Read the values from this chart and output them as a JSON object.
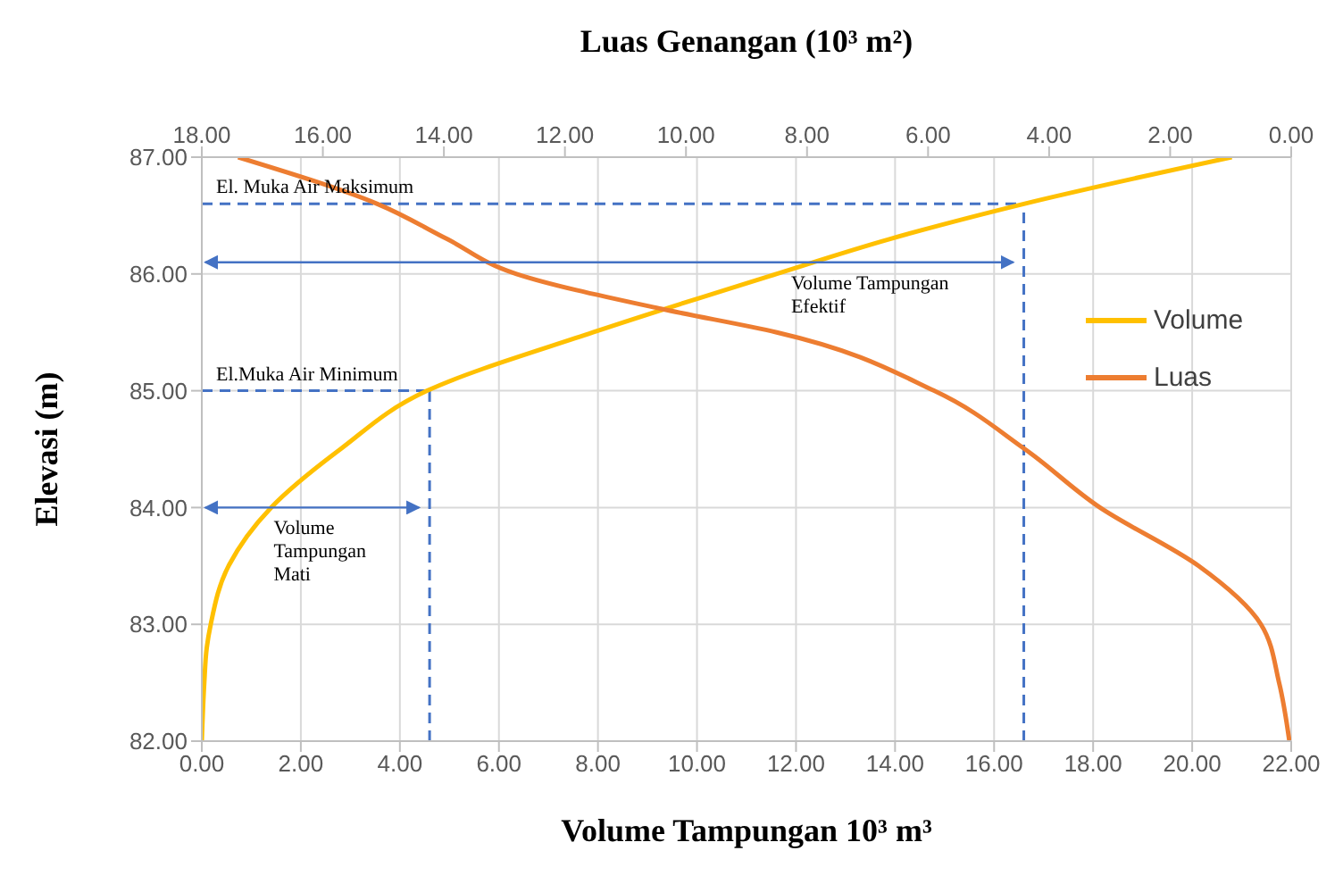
{
  "chart_data": {
    "type": "line",
    "title": "Luas Genangan (10³ m²)",
    "xlabel": "Volume Tampungan 10³ m³",
    "ylabel": "Elevasi (m)",
    "xlim": [
      0,
      22
    ],
    "xticks": [
      {
        "value": 0,
        "label": "0.00"
      },
      {
        "value": 2,
        "label": "2.00"
      },
      {
        "value": 4,
        "label": "4.00"
      },
      {
        "value": 6,
        "label": "6.00"
      },
      {
        "value": 8,
        "label": "8.00"
      },
      {
        "value": 10,
        "label": "10.00"
      },
      {
        "value": 12,
        "label": "12.00"
      },
      {
        "value": 14,
        "label": "14.00"
      },
      {
        "value": 16,
        "label": "16.00"
      },
      {
        "value": 18,
        "label": "18.00"
      },
      {
        "value": 20,
        "label": "20.00"
      },
      {
        "value": 22,
        "label": "22.00"
      }
    ],
    "x2lim": [
      18,
      0
    ],
    "x2ticks": [
      {
        "value": 18,
        "label": "18.00"
      },
      {
        "value": 16,
        "label": "16.00"
      },
      {
        "value": 14,
        "label": "14.00"
      },
      {
        "value": 12,
        "label": "12.00"
      },
      {
        "value": 10,
        "label": "10.00"
      },
      {
        "value": 8,
        "label": "8.00"
      },
      {
        "value": 6,
        "label": "6.00"
      },
      {
        "value": 4,
        "label": "4.00"
      },
      {
        "value": 2,
        "label": "2.00"
      },
      {
        "value": 0,
        "label": "0.00"
      }
    ],
    "ylim": [
      82,
      87
    ],
    "yticks": [
      {
        "value": 82,
        "label": "82.00"
      },
      {
        "value": 83,
        "label": "83.00"
      },
      {
        "value": 84,
        "label": "84.00"
      },
      {
        "value": 85,
        "label": "85.00"
      },
      {
        "value": 86,
        "label": "86.00"
      },
      {
        "value": 87,
        "label": "87.00"
      }
    ],
    "series": [
      {
        "name": "Volume",
        "color": "#ffc000",
        "x": [
          0,
          0.05,
          0.1,
          0.18,
          0.54,
          1.4,
          2.8,
          4.55,
          7.9,
          11.6,
          13.9,
          16.6,
          20.8
        ],
        "values": [
          82,
          82.5,
          82.8,
          83,
          83.5,
          84,
          84.5,
          85,
          85.5,
          86,
          86.3,
          86.6,
          87
        ]
      },
      {
        "name": "Luas",
        "color": "#ed7d31",
        "axis": "x2",
        "x": [
          0.03,
          0.2,
          0.5,
          1.53,
          3.16,
          4.4,
          5.9,
          8.5,
          10.4,
          12.8,
          13.95,
          15.1,
          17.4
        ],
        "values": [
          82,
          82.5,
          83,
          83.5,
          84,
          84.5,
          85,
          85.5,
          85.7,
          86,
          86.3,
          86.6,
          87
        ]
      }
    ],
    "ref_lines": [
      {
        "axis": "y",
        "value": 86.6,
        "label": "El. Muka Air Maksimum",
        "color": "#4472c4",
        "line_style": "dashed"
      },
      {
        "axis": "x",
        "value": 16.6,
        "color": "#4472c4",
        "line_style": "dashed"
      },
      {
        "axis": "y",
        "value": 85,
        "label": "El.Muka Air Minimum",
        "color": "#4472c4",
        "line_style": "dashed"
      },
      {
        "axis": "x",
        "value": 4.6,
        "color": "#4472c4",
        "line_style": "dashed"
      }
    ],
    "annotations": [
      {
        "text": "Volume Tampungan Efektif",
        "x": 11.9,
        "y": 86.1
      },
      {
        "text": "Volume Tampungan Mati",
        "x": 1.45,
        "y": 84
      }
    ],
    "grid": true,
    "legend": "right",
    "marker": "none",
    "line_style": "solid"
  }
}
